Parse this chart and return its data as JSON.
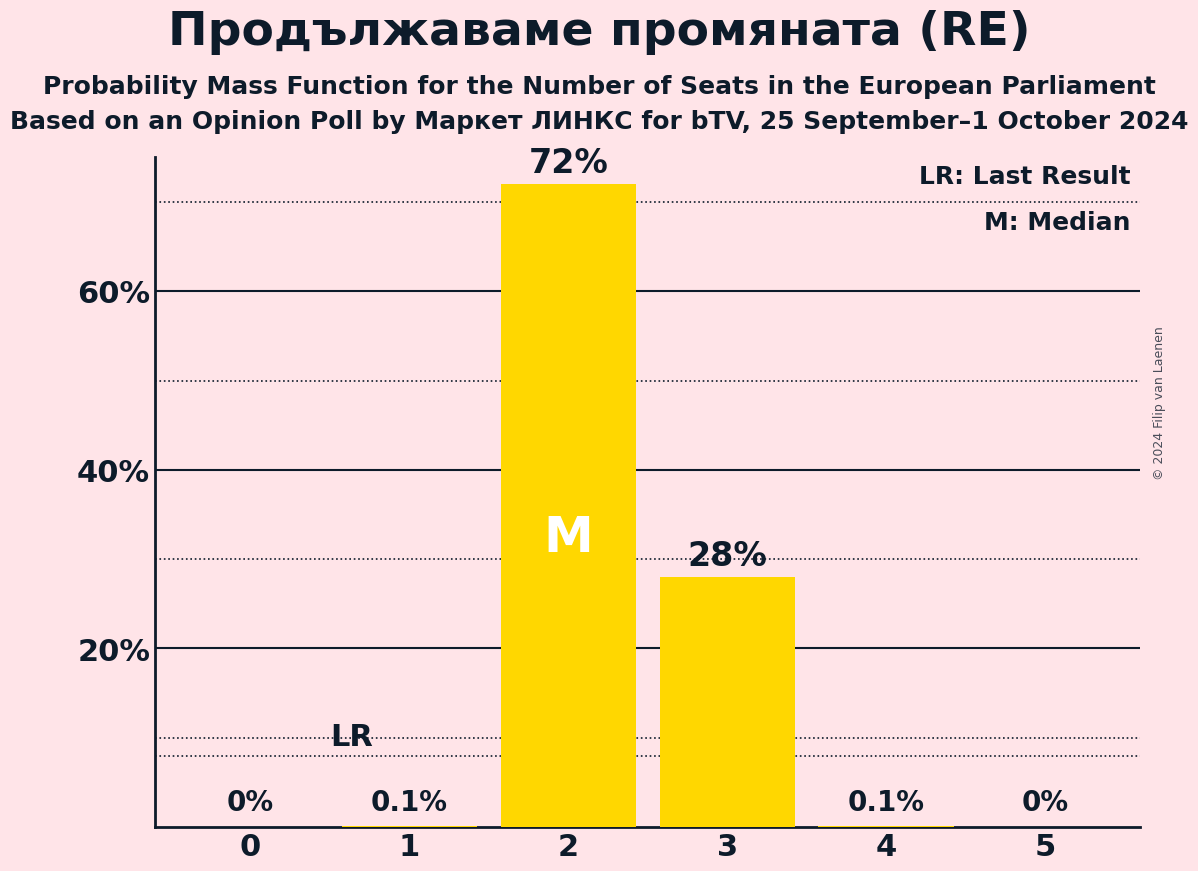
{
  "title": "Продължаваме промяната (RE)",
  "subtitle1": "Probability Mass Function for the Number of Seats in the European Parliament",
  "subtitle2": "Based on an Opinion Poll by Маркет ЛИНКС for bTV, 25 September–1 October 2024",
  "copyright": "© 2024 Filip van Laenen",
  "categories": [
    0,
    1,
    2,
    3,
    4,
    5
  ],
  "values": [
    0.0,
    0.001,
    0.72,
    0.28,
    0.001,
    0.0
  ],
  "bar_color": "#FFD700",
  "background_color": "#FFE4E8",
  "text_color": "#0d1b2a",
  "ylabel_ticks": [
    0,
    20,
    40,
    60
  ],
  "dotted_lines": [
    10,
    30,
    50,
    70
  ],
  "solid_lines": [
    20,
    40,
    60
  ],
  "lr_pct": 8.0,
  "lr_label": "LR",
  "median_seat": 2,
  "median_label": "M",
  "ylim": [
    0,
    75
  ],
  "bar_labels": [
    "0%",
    "0.1%",
    "72%",
    "28%",
    "0.1%",
    "0%"
  ],
  "legend_lr": "LR: Last Result",
  "legend_m": "M: Median"
}
